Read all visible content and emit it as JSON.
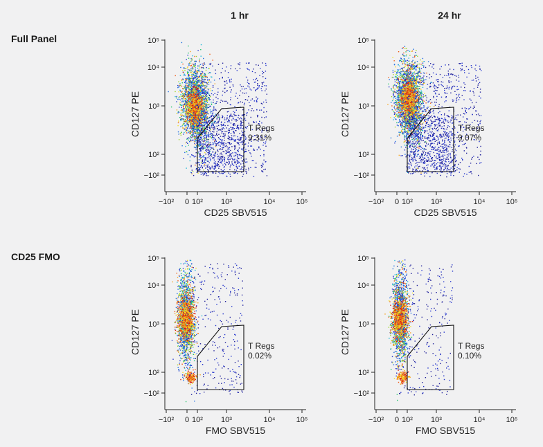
{
  "columns": [
    "1 hr",
    "24 hr"
  ],
  "rows": [
    "Full Panel",
    "CD25 FMO"
  ],
  "chart_data": [
    {
      "type": "scatter",
      "panel": "Full Panel, 1 hr",
      "xlabel": "CD25 SBV515",
      "ylabel": "CD127 PE",
      "x_ticks": [
        "−10²",
        "0",
        "10²",
        "10³",
        "10⁴",
        "10⁵"
      ],
      "y_ticks": [
        "10⁵",
        "10⁴",
        "10³",
        "10²",
        "−10²"
      ],
      "gate_label": "T Regs",
      "gate_value": "9.31%",
      "percent_in_gate": 9.31,
      "density": "pseudocolor"
    },
    {
      "type": "scatter",
      "panel": "Full Panel, 24 hr",
      "xlabel": "CD25 SBV515",
      "ylabel": "CD127 PE",
      "x_ticks": [
        "−10²",
        "0",
        "10²",
        "10³",
        "10⁴",
        "10⁵"
      ],
      "y_ticks": [
        "10⁵",
        "10⁴",
        "10³",
        "10²",
        "−10²"
      ],
      "gate_label": "T Regs",
      "gate_value": "9.07%",
      "percent_in_gate": 9.07,
      "density": "pseudocolor"
    },
    {
      "type": "scatter",
      "panel": "CD25 FMO, 1 hr",
      "xlabel": "FMO SBV515",
      "ylabel": "CD127 PE",
      "x_ticks": [
        "−10²",
        "0",
        "10²",
        "10³",
        "10⁴",
        "10⁵"
      ],
      "y_ticks": [
        "10⁵",
        "10⁴",
        "10³",
        "10²",
        "−10²"
      ],
      "gate_label": "T Regs",
      "gate_value": "0.02%",
      "percent_in_gate": 0.02,
      "density": "pseudocolor"
    },
    {
      "type": "scatter",
      "panel": "CD25 FMO, 24 hr",
      "xlabel": "FMO SBV515",
      "ylabel": "CD127 PE",
      "x_ticks": [
        "−10²",
        "0",
        "10²",
        "10³",
        "10⁴",
        "10⁵"
      ],
      "y_ticks": [
        "10⁵",
        "10⁴",
        "10³",
        "10²",
        "−10²"
      ],
      "gate_label": "T Regs",
      "gate_value": "0.10%",
      "percent_in_gate": 0.1,
      "density": "pseudocolor"
    }
  ]
}
